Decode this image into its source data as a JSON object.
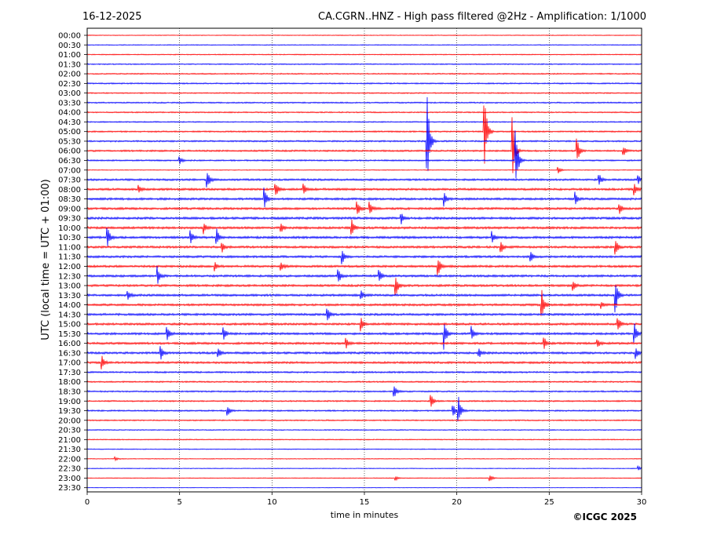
{
  "header": {
    "date": "16-12-2025",
    "title": "CA.CGRN..HNZ - High pass filtered @2Hz - Amplification: 1/1000"
  },
  "footer": {
    "copyright": "©ICGC 2025"
  },
  "chart_data": {
    "type": "line",
    "title": "CA.CGRN..HNZ - High pass filtered @2Hz - Amplification: 1/1000",
    "xlabel": "time in minutes",
    "ylabel": "UTC (local time = UTC + 01:00)",
    "xlim": [
      0,
      30
    ],
    "x_ticks": [
      "0",
      "5",
      "10",
      "15",
      "20",
      "25",
      "30"
    ],
    "vertical_grid_minutes": [
      5,
      10,
      15,
      20,
      25
    ],
    "grid": "vertical dotted",
    "row_labels": [
      "00:00",
      "00:30",
      "01:00",
      "01:30",
      "02:00",
      "02:30",
      "03:00",
      "03:30",
      "04:00",
      "04:30",
      "05:00",
      "05:30",
      "06:00",
      "06:30",
      "07:00",
      "07:30",
      "08:00",
      "08:30",
      "09:00",
      "09:30",
      "10:00",
      "10:30",
      "11:00",
      "11:30",
      "12:00",
      "12:30",
      "13:00",
      "13:30",
      "14:00",
      "14:30",
      "15:00",
      "15:30",
      "16:00",
      "16:30",
      "17:00",
      "17:30",
      "18:00",
      "18:30",
      "19:00",
      "19:30",
      "20:00",
      "20:30",
      "21:00",
      "21:30",
      "22:00",
      "22:30",
      "23:00",
      "23:30"
    ],
    "row_colors": [
      "#ff0000",
      "#0000ff"
    ],
    "noise_level": [
      0.3,
      0.35,
      0.4,
      0.45,
      0.5,
      0.55,
      0.5,
      0.55,
      0.5,
      0.5,
      0.6,
      0.65,
      0.7,
      0.6,
      0.3,
      0.8,
      0.9,
      0.9,
      0.9,
      0.95,
      0.95,
      0.95,
      0.9,
      0.9,
      0.9,
      0.9,
      0.9,
      0.9,
      0.9,
      0.9,
      0.9,
      0.9,
      0.9,
      0.9,
      0.85,
      0.7,
      0.6,
      0.6,
      0.6,
      0.6,
      0.5,
      0.4,
      0.4,
      0.35,
      0.3,
      0.3,
      0.3,
      0.2
    ],
    "events": [
      {
        "row": 11,
        "minute": 18.4,
        "amplitude": 60
      },
      {
        "row": 10,
        "minute": 21.5,
        "amplitude": 55
      },
      {
        "row": 12,
        "minute": 23.0,
        "amplitude": 50
      },
      {
        "row": 13,
        "minute": 23.2,
        "amplitude": 40
      },
      {
        "row": 12,
        "minute": 26.5,
        "amplitude": 18
      },
      {
        "row": 12,
        "minute": 29.0,
        "amplitude": 8
      },
      {
        "row": 13,
        "minute": 5.0,
        "amplitude": 5
      },
      {
        "row": 14,
        "minute": 25.5,
        "amplitude": 5
      },
      {
        "row": 15,
        "minute": 6.5,
        "amplitude": 14
      },
      {
        "row": 15,
        "minute": 27.7,
        "amplitude": 8
      },
      {
        "row": 15,
        "minute": 29.8,
        "amplitude": 7
      },
      {
        "row": 16,
        "minute": 10.2,
        "amplitude": 10
      },
      {
        "row": 16,
        "minute": 11.7,
        "amplitude": 7
      },
      {
        "row": 16,
        "minute": 2.8,
        "amplitude": 6
      },
      {
        "row": 16,
        "minute": 29.6,
        "amplitude": 10
      },
      {
        "row": 17,
        "minute": 9.6,
        "amplitude": 14
      },
      {
        "row": 17,
        "minute": 19.3,
        "amplitude": 10
      },
      {
        "row": 17,
        "minute": 26.4,
        "amplitude": 9
      },
      {
        "row": 18,
        "minute": 15.3,
        "amplitude": 8
      },
      {
        "row": 18,
        "minute": 28.8,
        "amplitude": 8
      },
      {
        "row": 18,
        "minute": 14.6,
        "amplitude": 12
      },
      {
        "row": 19,
        "minute": 17.0,
        "amplitude": 7
      },
      {
        "row": 20,
        "minute": 14.3,
        "amplitude": 12
      },
      {
        "row": 20,
        "minute": 6.3,
        "amplitude": 8
      },
      {
        "row": 20,
        "minute": 10.5,
        "amplitude": 6
      },
      {
        "row": 21,
        "minute": 1.1,
        "amplitude": 15
      },
      {
        "row": 21,
        "minute": 5.6,
        "amplitude": 9
      },
      {
        "row": 21,
        "minute": 7.0,
        "amplitude": 12
      },
      {
        "row": 21,
        "minute": 21.9,
        "amplitude": 8
      },
      {
        "row": 22,
        "minute": 22.4,
        "amplitude": 8
      },
      {
        "row": 22,
        "minute": 7.3,
        "amplitude": 7
      },
      {
        "row": 22,
        "minute": 28.6,
        "amplitude": 9
      },
      {
        "row": 23,
        "minute": 13.8,
        "amplitude": 10
      },
      {
        "row": 23,
        "minute": 24.0,
        "amplitude": 9
      },
      {
        "row": 24,
        "minute": 10.5,
        "amplitude": 6
      },
      {
        "row": 24,
        "minute": 19.0,
        "amplitude": 12
      },
      {
        "row": 24,
        "minute": 6.9,
        "amplitude": 6
      },
      {
        "row": 25,
        "minute": 3.8,
        "amplitude": 12
      },
      {
        "row": 25,
        "minute": 15.8,
        "amplitude": 9
      },
      {
        "row": 25,
        "minute": 13.6,
        "amplitude": 9
      },
      {
        "row": 26,
        "minute": 26.3,
        "amplitude": 7
      },
      {
        "row": 26,
        "minute": 16.7,
        "amplitude": 14
      },
      {
        "row": 27,
        "minute": 2.2,
        "amplitude": 8
      },
      {
        "row": 27,
        "minute": 14.8,
        "amplitude": 8
      },
      {
        "row": 27,
        "minute": 28.6,
        "amplitude": 22
      },
      {
        "row": 28,
        "minute": 24.6,
        "amplitude": 20
      },
      {
        "row": 28,
        "minute": 27.8,
        "amplitude": 6
      },
      {
        "row": 29,
        "minute": 13.0,
        "amplitude": 10
      },
      {
        "row": 30,
        "minute": 14.8,
        "amplitude": 10
      },
      {
        "row": 30,
        "minute": 28.7,
        "amplitude": 12
      },
      {
        "row": 31,
        "minute": 4.3,
        "amplitude": 15
      },
      {
        "row": 31,
        "minute": 7.4,
        "amplitude": 8
      },
      {
        "row": 31,
        "minute": 19.3,
        "amplitude": 20
      },
      {
        "row": 31,
        "minute": 20.8,
        "amplitude": 9
      },
      {
        "row": 31,
        "minute": 29.6,
        "amplitude": 16
      },
      {
        "row": 32,
        "minute": 14.0,
        "amplitude": 7
      },
      {
        "row": 32,
        "minute": 24.7,
        "amplitude": 10
      },
      {
        "row": 32,
        "minute": 27.6,
        "amplitude": 6
      },
      {
        "row": 33,
        "minute": 4.0,
        "amplitude": 8
      },
      {
        "row": 33,
        "minute": 7.1,
        "amplitude": 8
      },
      {
        "row": 33,
        "minute": 29.7,
        "amplitude": 7
      },
      {
        "row": 33,
        "minute": 21.2,
        "amplitude": 6
      },
      {
        "row": 34,
        "minute": 0.8,
        "amplitude": 8
      },
      {
        "row": 37,
        "minute": 16.6,
        "amplitude": 10
      },
      {
        "row": 38,
        "minute": 18.6,
        "amplitude": 12
      },
      {
        "row": 39,
        "minute": 7.6,
        "amplitude": 7
      },
      {
        "row": 39,
        "minute": 20.1,
        "amplitude": 20
      },
      {
        "row": 39,
        "minute": 19.8,
        "amplitude": 10
      },
      {
        "row": 44,
        "minute": 1.5,
        "amplitude": 3
      },
      {
        "row": 45,
        "minute": 29.8,
        "amplitude": 4
      },
      {
        "row": 46,
        "minute": 21.8,
        "amplitude": 5
      },
      {
        "row": 46,
        "minute": 16.7,
        "amplitude": 3
      }
    ]
  }
}
